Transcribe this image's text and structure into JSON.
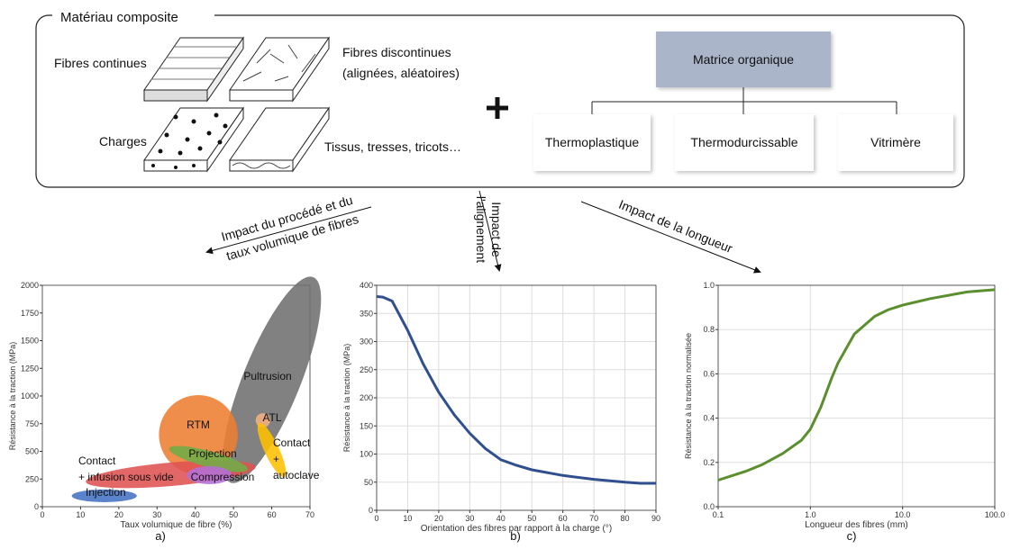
{
  "diagram": {
    "title": "Matériau composite",
    "reinforcements": [
      {
        "lines": [
          "Fibres continues"
        ]
      },
      {
        "lines": [
          "Fibres discontinues",
          "(alignées, aléatoires)"
        ]
      },
      {
        "lines": [
          "Charges"
        ]
      },
      {
        "lines": [
          "Tissus, tresses, tricots…"
        ]
      }
    ],
    "matrix": "Matrice organique",
    "matrix_types": [
      "Thermoplastique",
      "Thermodurcissable",
      "Vitrimère"
    ]
  },
  "arrows": [
    {
      "lines": [
        "Impact du procédé et du",
        "taux volumique de fibres"
      ]
    },
    {
      "lines": [
        "Impact de",
        "l'alignement"
      ]
    },
    {
      "lines": [
        "Impact de la longueur"
      ]
    }
  ],
  "chart_data": [
    {
      "type": "ellipse",
      "caption": "a)",
      "xlabel": "Taux volumique de fibre (%)",
      "ylabel": "Résistance à la traction (MPa)",
      "xlim": [
        0,
        70
      ],
      "xticks": [
        0,
        10,
        20,
        30,
        40,
        50,
        60,
        70
      ],
      "ylim": [
        0,
        2000
      ],
      "yticks": [
        0,
        250,
        500,
        750,
        1000,
        1250,
        1500,
        1750,
        2000
      ],
      "grid": false,
      "regions": [
        {
          "lines": [
            "Pultrusion"
          ],
          "color": "#6f6f6f",
          "cx": 60,
          "cy": 1146,
          "rx": 7.5,
          "ry": 1000,
          "angle": 22
        },
        {
          "lines": [
            "RTM"
          ],
          "color": "#ed7d31",
          "cx": 40.8,
          "cy": 650,
          "rx": 10.3,
          "ry": 358,
          "angle": 0
        },
        {
          "lines": [
            "Contact",
            "+ infusion sous vide"
          ],
          "color": "#e05252",
          "cx": 33.6,
          "cy": 293,
          "rx": 22.3,
          "ry": 106,
          "angle": -5
        },
        {
          "lines": [
            "Injection"
          ],
          "color": "#4472c4",
          "cx": 16.2,
          "cy": 98,
          "rx": 8.5,
          "ry": 57,
          "angle": 0
        },
        {
          "lines": [
            "Projection"
          ],
          "color": "#70ad47",
          "cx": 43.4,
          "cy": 431,
          "rx": 10.6,
          "ry": 73,
          "angle": 15
        },
        {
          "lines": [
            "Compression"
          ],
          "color": "#b36fd6",
          "cx": 43.7,
          "cy": 285,
          "rx": 5.9,
          "ry": 81,
          "angle": 0
        },
        {
          "lines": [
            "ATL"
          ],
          "color": "#f4b183",
          "cx": 57.7,
          "cy": 780,
          "rx": 1.9,
          "ry": 65,
          "angle": 0
        },
        {
          "lines": [
            "Contact",
            "+",
            "autoclave"
          ],
          "color": "#ffc000",
          "cx": 60,
          "cy": 512,
          "rx": 1.9,
          "ry": 268,
          "angle": -25
        }
      ]
    },
    {
      "type": "line",
      "caption": "b)",
      "xlabel": "Orientation des fibres par rapport à la charge (°)",
      "ylabel": "Résistance à la traction (MPa)",
      "xlim": [
        0,
        90
      ],
      "xticks": [
        0,
        10,
        20,
        30,
        40,
        50,
        60,
        70,
        80,
        90
      ],
      "ylim": [
        0,
        400
      ],
      "yticks": [
        0,
        50,
        100,
        150,
        200,
        250,
        300,
        350,
        400
      ],
      "grid": true,
      "color": "#2f4f8f",
      "x": [
        0,
        2,
        5,
        10,
        15,
        20,
        25,
        30,
        35,
        40,
        45,
        50,
        60,
        70,
        80,
        85,
        90
      ],
      "values": [
        380,
        379,
        372,
        320,
        260,
        210,
        170,
        137,
        110,
        90,
        80,
        72,
        62,
        55,
        50,
        48,
        48
      ]
    },
    {
      "type": "line",
      "caption": "c)",
      "xlabel": "Longueur des fibres (mm)",
      "ylabel": "Résistance à la traction normalisée",
      "xlog": true,
      "xlim": [
        0.1,
        100
      ],
      "xticks": [
        0.1,
        {
          "value": 1,
          "label": "1.0"
        },
        {
          "value": 10,
          "label": "10.0"
        },
        {
          "value": 100,
          "label": "100.0"
        }
      ],
      "ylim": [
        0,
        1
      ],
      "yticks": [
        {
          "value": 0,
          "label": "0.0"
        },
        0.2,
        0.4,
        0.6,
        0.8,
        {
          "value": 1,
          "label": "1.0"
        }
      ],
      "grid": true,
      "color": "#5b8f2e",
      "x": [
        0.1,
        0.2,
        0.3,
        0.5,
        0.8,
        1,
        1.3,
        1.7,
        2,
        3,
        5,
        7,
        10,
        20,
        50,
        100
      ],
      "values": [
        0.12,
        0.16,
        0.19,
        0.24,
        0.3,
        0.35,
        0.45,
        0.58,
        0.65,
        0.78,
        0.86,
        0.89,
        0.91,
        0.94,
        0.97,
        0.98
      ]
    }
  ]
}
